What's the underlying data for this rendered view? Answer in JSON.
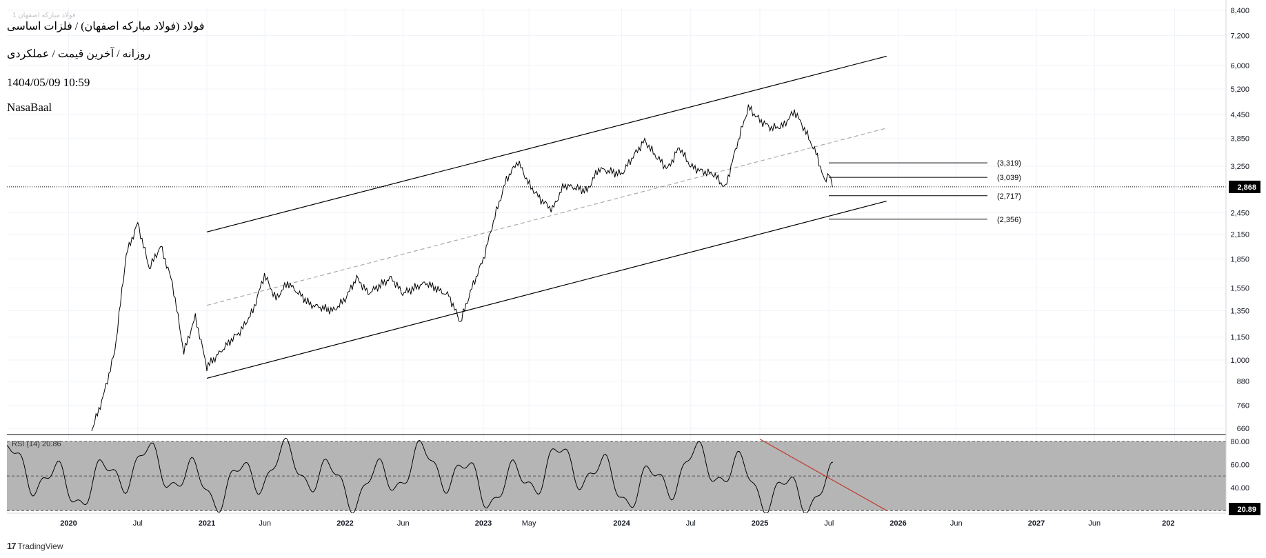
{
  "header": {
    "symbol": "فولاد (فولاد مبارکه اصفهان) / فلزات اساسی",
    "subtitle": "روزانه / آخرین قیمت / عملکردی",
    "timestamp": "1404/05/09 10:59",
    "author": "NasaBaal",
    "watermark": "فولاد مبارکه اصفهان 1"
  },
  "brand": {
    "logo": "17",
    "name": "TradingView"
  },
  "chart_data": {
    "type": "line",
    "scale": "log",
    "price_axis": [
      "8,400",
      "7,200",
      "6,000",
      "5,200",
      "4,450",
      "3,850",
      "3,250",
      "2,450",
      "2,150",
      "1,850",
      "1,550",
      "1,350",
      "1,150",
      "1,000",
      "880",
      "760",
      "660"
    ],
    "time_axis": [
      "2020",
      "Jul",
      "2021",
      "Jun",
      "2022",
      "Jun",
      "2023",
      "May",
      "2024",
      "Jul",
      "2025",
      "Jul",
      "2026",
      "Jun",
      "2027",
      "Jun",
      "202"
    ],
    "last_price": {
      "label": "2,868",
      "value": 2868
    },
    "levels": [
      {
        "label": "(3,319)",
        "value": 3319
      },
      {
        "label": "(3,039)",
        "value": 3039
      },
      {
        "label": "(2,717)",
        "value": 2717
      },
      {
        "label": "(2,356)",
        "value": 2356
      }
    ],
    "channel": {
      "upper": [
        [
          "2021-01",
          2180
        ],
        [
          "2025-12",
          6350
        ]
      ],
      "lower": [
        [
          "2021-01",
          895
        ],
        [
          "2025-12",
          2630
        ]
      ],
      "mid": [
        [
          "2021-01",
          1395
        ],
        [
          "2025-12",
          4100
        ]
      ]
    },
    "price_path": [
      [
        "2020-03",
        650
      ],
      [
        "2020-04",
        800
      ],
      [
        "2020-05",
        1050
      ],
      [
        "2020-06",
        1900
      ],
      [
        "2020-07",
        2300
      ],
      [
        "2020-08",
        1750
      ],
      [
        "2020-09",
        2000
      ],
      [
        "2020-10",
        1600
      ],
      [
        "2020-11",
        1050
      ],
      [
        "2020-12",
        1300
      ],
      [
        "2021-01",
        960
      ],
      [
        "2021-03",
        1120
      ],
      [
        "2021-04",
        1200
      ],
      [
        "2021-05",
        1350
      ],
      [
        "2021-06",
        1680
      ],
      [
        "2021-07",
        1450
      ],
      [
        "2021-08",
        1600
      ],
      [
        "2021-10",
        1400
      ],
      [
        "2021-12",
        1350
      ],
      [
        "2022-01",
        1450
      ],
      [
        "2022-02",
        1650
      ],
      [
        "2022-03",
        1500
      ],
      [
        "2022-05",
        1650
      ],
      [
        "2022-06",
        1500
      ],
      [
        "2022-08",
        1600
      ],
      [
        "2022-10",
        1480
      ],
      [
        "2022-11",
        1260
      ],
      [
        "2022-12",
        1550
      ],
      [
        "2023-01",
        1850
      ],
      [
        "2023-02",
        2400
      ],
      [
        "2023-03",
        3000
      ],
      [
        "2023-04",
        3350
      ],
      [
        "2023-05",
        2900
      ],
      [
        "2023-06",
        2650
      ],
      [
        "2023-07",
        2500
      ],
      [
        "2023-08",
        2900
      ],
      [
        "2023-10",
        2800
      ],
      [
        "2023-11",
        3200
      ],
      [
        "2024-01",
        3100
      ],
      [
        "2024-02",
        3450
      ],
      [
        "2024-03",
        3800
      ],
      [
        "2024-04",
        3450
      ],
      [
        "2024-05",
        3200
      ],
      [
        "2024-06",
        3650
      ],
      [
        "2024-07",
        3250
      ],
      [
        "2024-08",
        3150
      ],
      [
        "2024-09",
        3100
      ],
      [
        "2024-10",
        2850
      ],
      [
        "2024-11",
        3700
      ],
      [
        "2024-12",
        4650
      ],
      [
        "2025-01",
        4300
      ],
      [
        "2025-02",
        4100
      ],
      [
        "2025-03",
        4150
      ],
      [
        "2025-04",
        4550
      ],
      [
        "2025-05",
        4000
      ],
      [
        "2025-06",
        3450
      ],
      [
        "2025-06-20",
        2950
      ],
      [
        "2025-07",
        3150
      ],
      [
        "2025-07-10",
        2868
      ]
    ],
    "rsi": {
      "label": "RSI (14)",
      "value": "20.86",
      "axis_value": "20.89",
      "axis": [
        "80.00",
        "60.00",
        "40.00"
      ],
      "bands": [
        80,
        50,
        20
      ],
      "trendline": [
        [
          "2025-01",
          82
        ],
        [
          "2025-12",
          20
        ]
      ]
    }
  },
  "colors": {
    "price": "#000000",
    "trendline": "#c0392b",
    "rsi_bg": "#b5b5b5",
    "axis_text": "#131722",
    "grid": "#f0f3fa"
  }
}
